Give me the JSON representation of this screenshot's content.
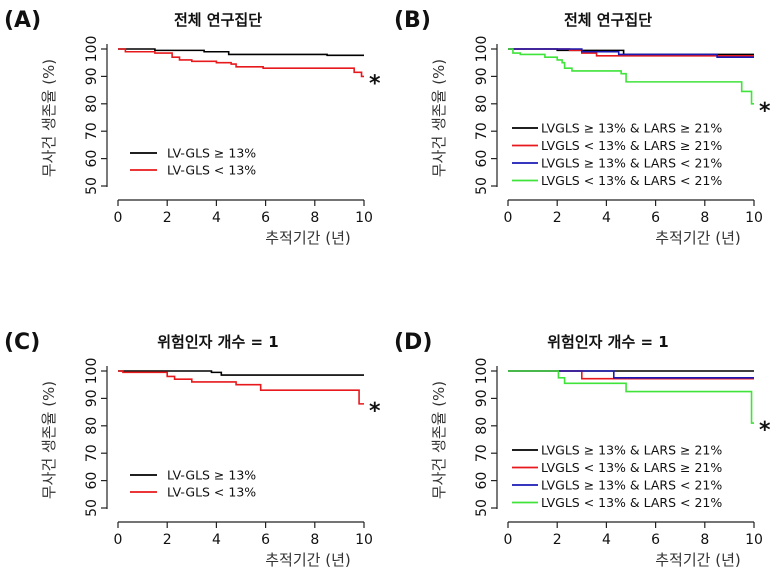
{
  "chart_data": [
    {
      "panel_label": "(A)",
      "type": "line",
      "step": true,
      "title": "전체 연구집단",
      "xlabel": "추적기간 (년)",
      "ylabel": "무사건 생존율 (%)",
      "xlim": [
        0,
        10
      ],
      "ylim": [
        50,
        100
      ],
      "xticks": [
        "0",
        "2",
        "4",
        "6",
        "8",
        "10"
      ],
      "yticks": [
        "50",
        "60",
        "70",
        "80",
        "90",
        "100"
      ],
      "legend_position": "bottom-left",
      "annotation": "*",
      "series": [
        {
          "name": "LV-GLS ≥ 13%",
          "color": "#000000",
          "points": [
            [
              0,
              100
            ],
            [
              1.5,
              99.5
            ],
            [
              3.5,
              99
            ],
            [
              4.5,
              98
            ],
            [
              8.5,
              97.7
            ],
            [
              10,
              97.7
            ]
          ]
        },
        {
          "name": "LV-GLS < 13%",
          "color": "#e8191c",
          "points": [
            [
              0,
              100
            ],
            [
              0.3,
              99
            ],
            [
              1.5,
              98.5
            ],
            [
              2.2,
              97
            ],
            [
              2.5,
              96
            ],
            [
              3,
              95.5
            ],
            [
              4,
              95
            ],
            [
              4.6,
              94.5
            ],
            [
              4.8,
              93.5
            ],
            [
              5.9,
              93
            ],
            [
              9.6,
              91.5
            ],
            [
              9.9,
              90
            ],
            [
              10,
              90
            ]
          ]
        }
      ]
    },
    {
      "panel_label": "(B)",
      "type": "line",
      "step": true,
      "title": "전체 연구집단",
      "xlabel": "추적기간 (년)",
      "ylabel": "무사건 생존율 (%)",
      "xlim": [
        0,
        10
      ],
      "ylim": [
        50,
        100
      ],
      "xticks": [
        "0",
        "2",
        "4",
        "6",
        "8",
        "10"
      ],
      "yticks": [
        "50",
        "60",
        "70",
        "80",
        "90",
        "100"
      ],
      "legend_position": "bottom-left",
      "annotation": "*",
      "series": [
        {
          "name": "LVGLS ≥ 13% & LARS ≥ 21%",
          "color": "#000000",
          "points": [
            [
              0,
              100
            ],
            [
              2,
              99.5
            ],
            [
              4.7,
              98
            ],
            [
              10,
              98
            ]
          ]
        },
        {
          "name": "LVGLS < 13% & LARS ≥ 21%",
          "color": "#e8191c",
          "points": [
            [
              0,
              100
            ],
            [
              2.5,
              99.5
            ],
            [
              3,
              98.5
            ],
            [
              3.6,
              97.5
            ],
            [
              10,
              97.5
            ]
          ]
        },
        {
          "name": "LVGLS ≥ 13% & LARS < 21%",
          "color": "#1a1ab4",
          "points": [
            [
              0,
              100
            ],
            [
              3,
              99
            ],
            [
              4.5,
              98
            ],
            [
              8.5,
              97
            ],
            [
              10,
              97
            ]
          ]
        },
        {
          "name": "LVGLS < 13% & LARS < 21%",
          "color": "#3fe33a",
          "points": [
            [
              0,
              100
            ],
            [
              0.2,
              98.5
            ],
            [
              0.5,
              98
            ],
            [
              1.5,
              97
            ],
            [
              2,
              96
            ],
            [
              2.2,
              95
            ],
            [
              2.3,
              93
            ],
            [
              2.6,
              92
            ],
            [
              4.6,
              91
            ],
            [
              4.8,
              88
            ],
            [
              9.5,
              84.5
            ],
            [
              9.9,
              80
            ],
            [
              10,
              80
            ]
          ]
        }
      ]
    },
    {
      "panel_label": "(C)",
      "type": "line",
      "step": true,
      "title": "위험인자 개수 = 1",
      "xlabel": "추적기간 (년)",
      "ylabel": "무사건 생존율 (%)",
      "xlim": [
        0,
        10
      ],
      "ylim": [
        50,
        100
      ],
      "xticks": [
        "0",
        "2",
        "4",
        "6",
        "8",
        "10"
      ],
      "yticks": [
        "50",
        "60",
        "70",
        "80",
        "90",
        "100"
      ],
      "legend_position": "bottom-left",
      "annotation": "*",
      "series": [
        {
          "name": "LV-GLS ≥ 13%",
          "color": "#000000",
          "points": [
            [
              0,
              100
            ],
            [
              3.8,
              99.5
            ],
            [
              4.2,
              98.5
            ],
            [
              10,
              98.5
            ]
          ]
        },
        {
          "name": "LV-GLS < 13%",
          "color": "#e8191c",
          "points": [
            [
              0,
              100
            ],
            [
              0.2,
              99.5
            ],
            [
              2,
              98
            ],
            [
              2.3,
              97
            ],
            [
              3,
              96
            ],
            [
              4.8,
              95
            ],
            [
              5.8,
              93
            ],
            [
              9.8,
              88
            ],
            [
              10,
              88
            ]
          ]
        }
      ]
    },
    {
      "panel_label": "(D)",
      "type": "line",
      "step": true,
      "title": "위험인자 개수 = 1",
      "xlabel": "추적기간 (년)",
      "ylabel": "무사건 생존율 (%)",
      "xlim": [
        0,
        10
      ],
      "ylim": [
        50,
        100
      ],
      "xticks": [
        "0",
        "2",
        "4",
        "6",
        "8",
        "10"
      ],
      "yticks": [
        "50",
        "60",
        "70",
        "80",
        "90",
        "100"
      ],
      "legend_position": "bottom-left",
      "annotation": "*",
      "series": [
        {
          "name": "LVGLS ≥ 13% & LARS ≥ 21%",
          "color": "#000000",
          "points": [
            [
              0,
              100
            ],
            [
              10,
              100
            ]
          ]
        },
        {
          "name": "LVGLS < 13% & LARS ≥ 21%",
          "color": "#e8191c",
          "points": [
            [
              0,
              100
            ],
            [
              3,
              97.2
            ],
            [
              10,
              97.2
            ]
          ]
        },
        {
          "name": "LVGLS ≥ 13% & LARS < 21%",
          "color": "#1a1ab4",
          "points": [
            [
              0,
              100
            ],
            [
              4.3,
              97.5
            ],
            [
              10,
              97.5
            ]
          ]
        },
        {
          "name": "LVGLS < 13% & LARS < 21%",
          "color": "#3fe33a",
          "points": [
            [
              0,
              100
            ],
            [
              2.05,
              97.5
            ],
            [
              2.3,
              95.5
            ],
            [
              4.8,
              92.5
            ],
            [
              9.9,
              81
            ],
            [
              10,
              81
            ]
          ]
        }
      ]
    }
  ]
}
